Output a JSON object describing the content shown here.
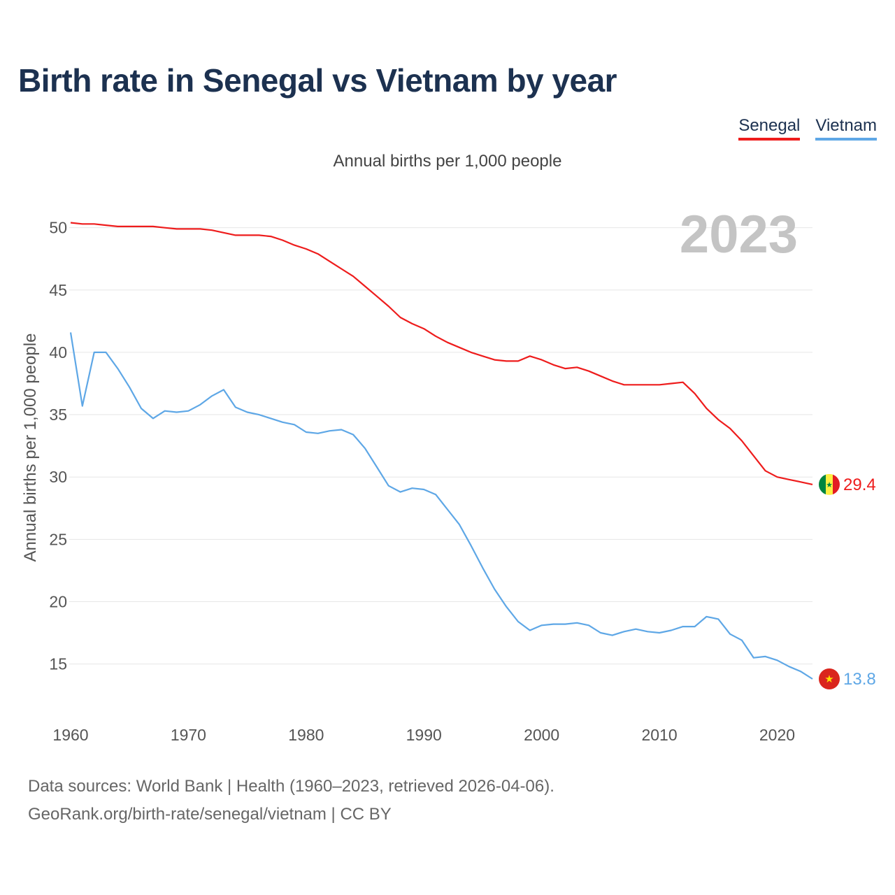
{
  "title": "Birth rate in Senegal vs Vietnam by year",
  "legend": [
    {
      "label": "Senegal",
      "color": "#ee1c1c"
    },
    {
      "label": "Vietnam",
      "color": "#5ea7e6"
    }
  ],
  "footer": {
    "line1": "Data sources: World Bank | Health (1960–2023, retrieved 2026-04-06).",
    "line2": "GeoRank.org/birth-rate/senegal/vietnam | CC BY"
  },
  "chart_data": {
    "type": "line",
    "title": "Birth rate in Senegal vs Vietnam by year",
    "subtitle": "Annual births per 1,000 people",
    "ylabel": "Annual births per 1,000 people",
    "xlabel": "",
    "watermark_year": "2023",
    "xlim": [
      1960,
      2023
    ],
    "ylim": [
      11.5,
      52
    ],
    "x_ticks": [
      1960,
      1970,
      1980,
      1990,
      2000,
      2010,
      2020
    ],
    "y_ticks": [
      15,
      20,
      25,
      30,
      35,
      40,
      45,
      50
    ],
    "grid": true,
    "x": [
      1960,
      1961,
      1962,
      1963,
      1964,
      1965,
      1966,
      1967,
      1968,
      1969,
      1970,
      1971,
      1972,
      1973,
      1974,
      1975,
      1976,
      1977,
      1978,
      1979,
      1980,
      1981,
      1982,
      1983,
      1984,
      1985,
      1986,
      1987,
      1988,
      1989,
      1990,
      1991,
      1992,
      1993,
      1994,
      1995,
      1996,
      1997,
      1998,
      1999,
      2000,
      2001,
      2002,
      2003,
      2004,
      2005,
      2006,
      2007,
      2008,
      2009,
      2010,
      2011,
      2012,
      2013,
      2014,
      2015,
      2016,
      2017,
      2018,
      2019,
      2020,
      2021,
      2022,
      2023
    ],
    "series": [
      {
        "name": "Senegal",
        "color": "#ee1c1c",
        "end_label": "29.4",
        "values": [
          50.4,
          50.3,
          50.3,
          50.2,
          50.1,
          50.1,
          50.1,
          50.1,
          50.0,
          49.9,
          49.9,
          49.9,
          49.8,
          49.6,
          49.4,
          49.4,
          49.4,
          49.3,
          49.0,
          48.6,
          48.3,
          47.9,
          47.3,
          46.7,
          46.1,
          45.3,
          44.5,
          43.7,
          42.8,
          42.3,
          41.9,
          41.3,
          40.8,
          40.4,
          40.0,
          39.7,
          39.4,
          39.3,
          39.3,
          39.7,
          39.4,
          39.0,
          38.7,
          38.8,
          38.5,
          38.1,
          37.7,
          37.4,
          37.4,
          37.4,
          37.4,
          37.5,
          37.6,
          36.7,
          35.5,
          34.6,
          33.9,
          32.9,
          31.7,
          30.5,
          30.0,
          29.8,
          29.6,
          29.4
        ]
      },
      {
        "name": "Vietnam",
        "color": "#5ea7e6",
        "end_label": "13.8",
        "values": [
          41.6,
          35.7,
          40.0,
          40.0,
          38.7,
          37.2,
          35.5,
          34.7,
          35.3,
          35.2,
          35.3,
          35.8,
          36.5,
          37.0,
          35.6,
          35.2,
          35.0,
          34.7,
          34.4,
          34.2,
          33.6,
          33.5,
          33.7,
          33.8,
          33.4,
          32.3,
          30.8,
          29.3,
          28.8,
          29.1,
          29.0,
          28.6,
          27.4,
          26.2,
          24.5,
          22.7,
          21.0,
          19.6,
          18.4,
          17.7,
          18.1,
          18.2,
          18.2,
          18.3,
          18.1,
          17.5,
          17.3,
          17.6,
          17.8,
          17.6,
          17.5,
          17.7,
          18.0,
          18.0,
          18.8,
          18.6,
          17.4,
          16.9,
          15.5,
          15.6,
          15.3,
          14.8,
          14.4,
          13.8
        ]
      }
    ]
  }
}
